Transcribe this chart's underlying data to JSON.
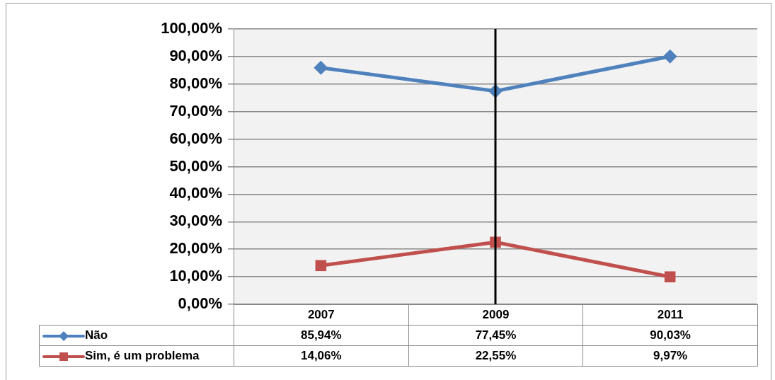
{
  "chart_data": {
    "type": "line",
    "categories": [
      "2007",
      "2009",
      "2011"
    ],
    "series": [
      {
        "name": "Não",
        "color": "#4f81bd",
        "marker": "diamond",
        "values": [
          85.94,
          77.45,
          90.03
        ]
      },
      {
        "name": "Sim, é um problema",
        "color": "#c0504d",
        "marker": "square",
        "values": [
          14.06,
          22.55,
          9.97
        ]
      }
    ],
    "ylim": [
      0,
      100
    ],
    "yticks": [
      {
        "value": 0,
        "label": "0,00%"
      },
      {
        "value": 10,
        "label": "10,00%"
      },
      {
        "value": 20,
        "label": "20,00%"
      },
      {
        "value": 30,
        "label": "30,00%"
      },
      {
        "value": 40,
        "label": "40,00%"
      },
      {
        "value": 50,
        "label": "50,00%"
      },
      {
        "value": 60,
        "label": "60,00%"
      },
      {
        "value": 70,
        "label": "70,00%"
      },
      {
        "value": 80,
        "label": "80,00%"
      },
      {
        "value": 90,
        "label": "90,00%"
      },
      {
        "value": 100,
        "label": "100,00%"
      }
    ],
    "value_labels": [
      [
        "85,94%",
        "77,45%",
        "90,03%"
      ],
      [
        "14,06%",
        "22,55%",
        "9,97%"
      ]
    ],
    "ref_lines": [
      {
        "axis": "x",
        "value": "2009",
        "color": "#000000"
      }
    ],
    "grid": "y",
    "legend": "bottom"
  }
}
